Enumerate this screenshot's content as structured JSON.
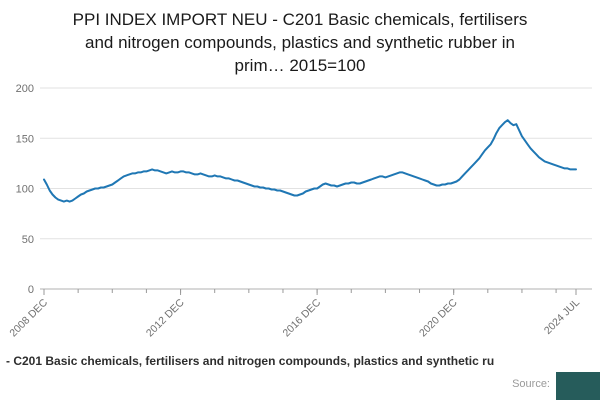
{
  "title": {
    "lines": [
      "PPI INDEX IMPORT NEU - C201 Basic chemicals, fertilisers",
      "and nitrogen compounds, plastics and synthetic rubber in",
      "prim… 2015=100"
    ],
    "full": "PPI INDEX IMPORT NEU - C201 Basic chemicals, fertilisers and nitrogen compounds, plastics and synthetic rubber in prim… 2015=100"
  },
  "chart_data": {
    "type": "line",
    "title": "PPI INDEX IMPORT NEU - C201 Basic chemicals, fertilisers and nitrogen compounds, plastics and synthetic rubber in prim… 2015=100",
    "xlabel": "",
    "ylabel": "",
    "ylim": [
      0,
      200
    ],
    "y_ticks": [
      0,
      50,
      100,
      150,
      200
    ],
    "x_tick_labels": [
      "2008 DEC",
      "2012 DEC",
      "2016 DEC",
      "2020 DEC",
      "2024 JUL"
    ],
    "x_tick_positions": [
      0,
      48,
      96,
      144,
      187
    ],
    "x_unit": "month",
    "grid": "horizontal",
    "legend_position": "bottom",
    "series": [
      {
        "name": "C201 Basic chemicals, fertilisers and nitrogen compounds, plastics and synthetic rubber",
        "color": "#1f77b4",
        "values": [
          109,
          104,
          98,
          94,
          91,
          89,
          88,
          87,
          88,
          87,
          88,
          90,
          92,
          94,
          95,
          97,
          98,
          99,
          100,
          100,
          101,
          101,
          102,
          103,
          104,
          106,
          108,
          110,
          112,
          113,
          114,
          115,
          115,
          116,
          116,
          117,
          117,
          118,
          119,
          118,
          118,
          117,
          116,
          115,
          116,
          117,
          116,
          116,
          117,
          117,
          116,
          116,
          115,
          114,
          114,
          115,
          114,
          113,
          112,
          112,
          113,
          112,
          112,
          111,
          110,
          110,
          109,
          108,
          108,
          107,
          106,
          105,
          104,
          103,
          102,
          102,
          101,
          101,
          100,
          100,
          99,
          99,
          98,
          98,
          97,
          96,
          95,
          94,
          93,
          93,
          94,
          95,
          97,
          98,
          99,
          100,
          100,
          102,
          104,
          105,
          104,
          103,
          103,
          102,
          103,
          104,
          105,
          105,
          106,
          106,
          105,
          105,
          106,
          107,
          108,
          109,
          110,
          111,
          112,
          112,
          111,
          112,
          113,
          114,
          115,
          116,
          116,
          115,
          114,
          113,
          112,
          111,
          110,
          109,
          108,
          107,
          105,
          104,
          103,
          103,
          104,
          104,
          105,
          105,
          106,
          107,
          109,
          112,
          115,
          118,
          121,
          124,
          127,
          130,
          134,
          138,
          141,
          144,
          149,
          155,
          160,
          163,
          166,
          168,
          165,
          163,
          164,
          158,
          152,
          148,
          144,
          140,
          137,
          134,
          131,
          129,
          127,
          126,
          125,
          124,
          123,
          122,
          121,
          120,
          120,
          119,
          119,
          119
        ]
      }
    ]
  },
  "legend": {
    "label": "- C201 Basic chemicals, fertilisers and nitrogen compounds, plastics and synthetic ru"
  },
  "footer": {
    "source_label": "Source:"
  },
  "colors": {
    "line": "#1f77b4",
    "grid": "#e2e2e2",
    "axis": "#b0b0b0",
    "tick": "#9a9a9a",
    "tick_label": "#707070",
    "title_text": "#1a1a1a",
    "legend_text": "#2e2e2e",
    "source_text": "#9a9a9a",
    "logo_bg": "#265c5b"
  }
}
